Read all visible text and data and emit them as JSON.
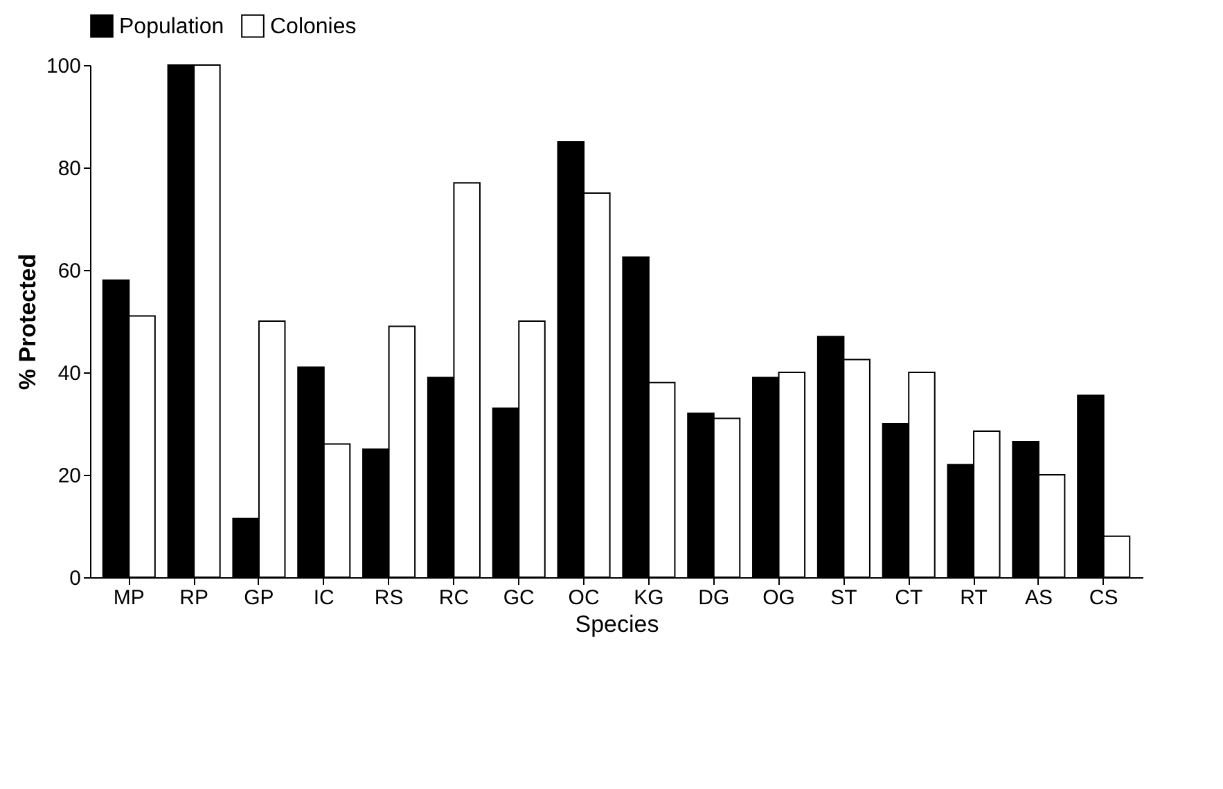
{
  "chart_data": {
    "type": "bar",
    "xlabel": "Species",
    "ylabel": "% Protected",
    "categories": [
      "MP",
      "RP",
      "GP",
      "IC",
      "RS",
      "RC",
      "GC",
      "OC",
      "KG",
      "DG",
      "OG",
      "ST",
      "CT",
      "RT",
      "AS",
      "CS"
    ],
    "series": [
      {
        "name": "Population",
        "color": "#000000",
        "values": [
          58,
          100,
          11.5,
          41,
          25,
          39,
          33,
          85,
          62.5,
          32,
          39,
          47,
          30,
          22,
          26.5,
          35.5
        ]
      },
      {
        "name": "Colonies",
        "color": "#ffffff",
        "values": [
          51,
          100,
          50,
          26,
          49,
          77,
          50,
          75,
          38,
          31,
          40,
          42.5,
          40,
          28.5,
          20,
          8
        ]
      }
    ],
    "ylim": [
      0,
      100
    ],
    "yticks": [
      0,
      20,
      40,
      60,
      80,
      100
    ],
    "grid": false,
    "legend": "top"
  }
}
